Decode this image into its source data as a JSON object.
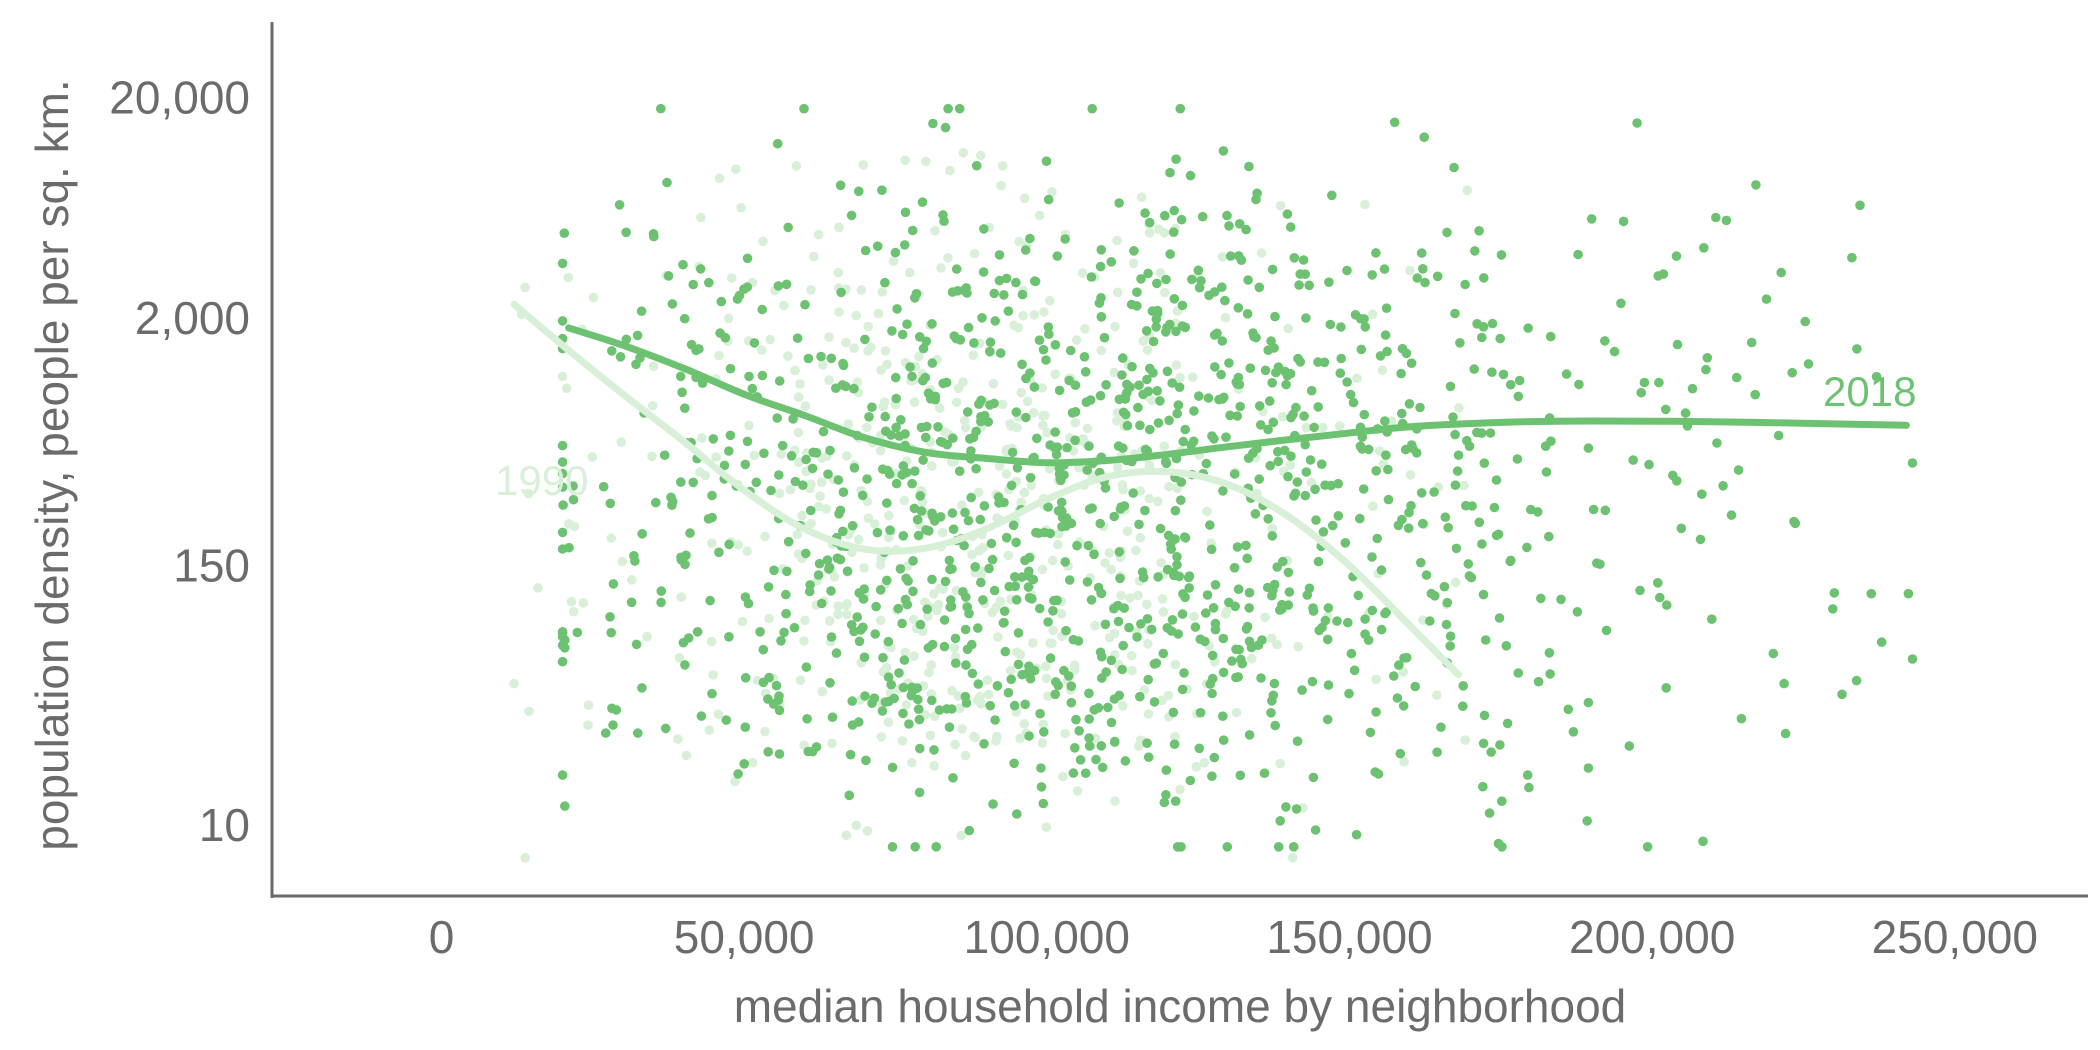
{
  "chart_data": {
    "type": "scatter",
    "title": "",
    "xlabel": "median household income by neighborhood",
    "ylabel": "population density, people per sq. km.",
    "xlim": [
      -28000,
      272000
    ],
    "ylim_log": [
      4.8,
      44000
    ],
    "y_scale": "log",
    "x_ticks": [
      0,
      50000,
      100000,
      150000,
      200000,
      250000
    ],
    "x_tick_labels": [
      "0",
      "50,000",
      "100,000",
      "150,000",
      "200,000",
      "250,000"
    ],
    "y_ticks": [
      10,
      150,
      2000,
      20000
    ],
    "y_tick_labels": [
      "10",
      "150",
      "2,000",
      "20,000"
    ],
    "grid": false,
    "colors": {
      "s2018": "#6cc270",
      "s1990": "#d8efd8",
      "axis": "#6b6b6b"
    },
    "series": [
      {
        "name": "1990",
        "n_points": 600,
        "trend": [
          [
            12000,
            2300
          ],
          [
            20000,
            1500
          ],
          [
            30000,
            900
          ],
          [
            40000,
            550
          ],
          [
            50000,
            330
          ],
          [
            60000,
            220
          ],
          [
            70000,
            178
          ],
          [
            80000,
            180
          ],
          [
            90000,
            220
          ],
          [
            100000,
            300
          ],
          [
            110000,
            380
          ],
          [
            120000,
            400
          ],
          [
            130000,
            350
          ],
          [
            140000,
            250
          ],
          [
            150000,
            150
          ],
          [
            160000,
            80
          ],
          [
            168000,
            48
          ]
        ]
      },
      {
        "name": "2018",
        "n_points": 1300,
        "trend": [
          [
            21000,
            1800
          ],
          [
            30000,
            1500
          ],
          [
            40000,
            1180
          ],
          [
            50000,
            900
          ],
          [
            60000,
            720
          ],
          [
            70000,
            570
          ],
          [
            80000,
            490
          ],
          [
            90000,
            460
          ],
          [
            100000,
            440
          ],
          [
            110000,
            450
          ],
          [
            120000,
            480
          ],
          [
            130000,
            520
          ],
          [
            140000,
            560
          ],
          [
            150000,
            600
          ],
          [
            160000,
            640
          ],
          [
            175000,
            670
          ],
          [
            190000,
            680
          ],
          [
            210000,
            675
          ],
          [
            230000,
            660
          ],
          [
            242000,
            650
          ]
        ]
      }
    ]
  }
}
